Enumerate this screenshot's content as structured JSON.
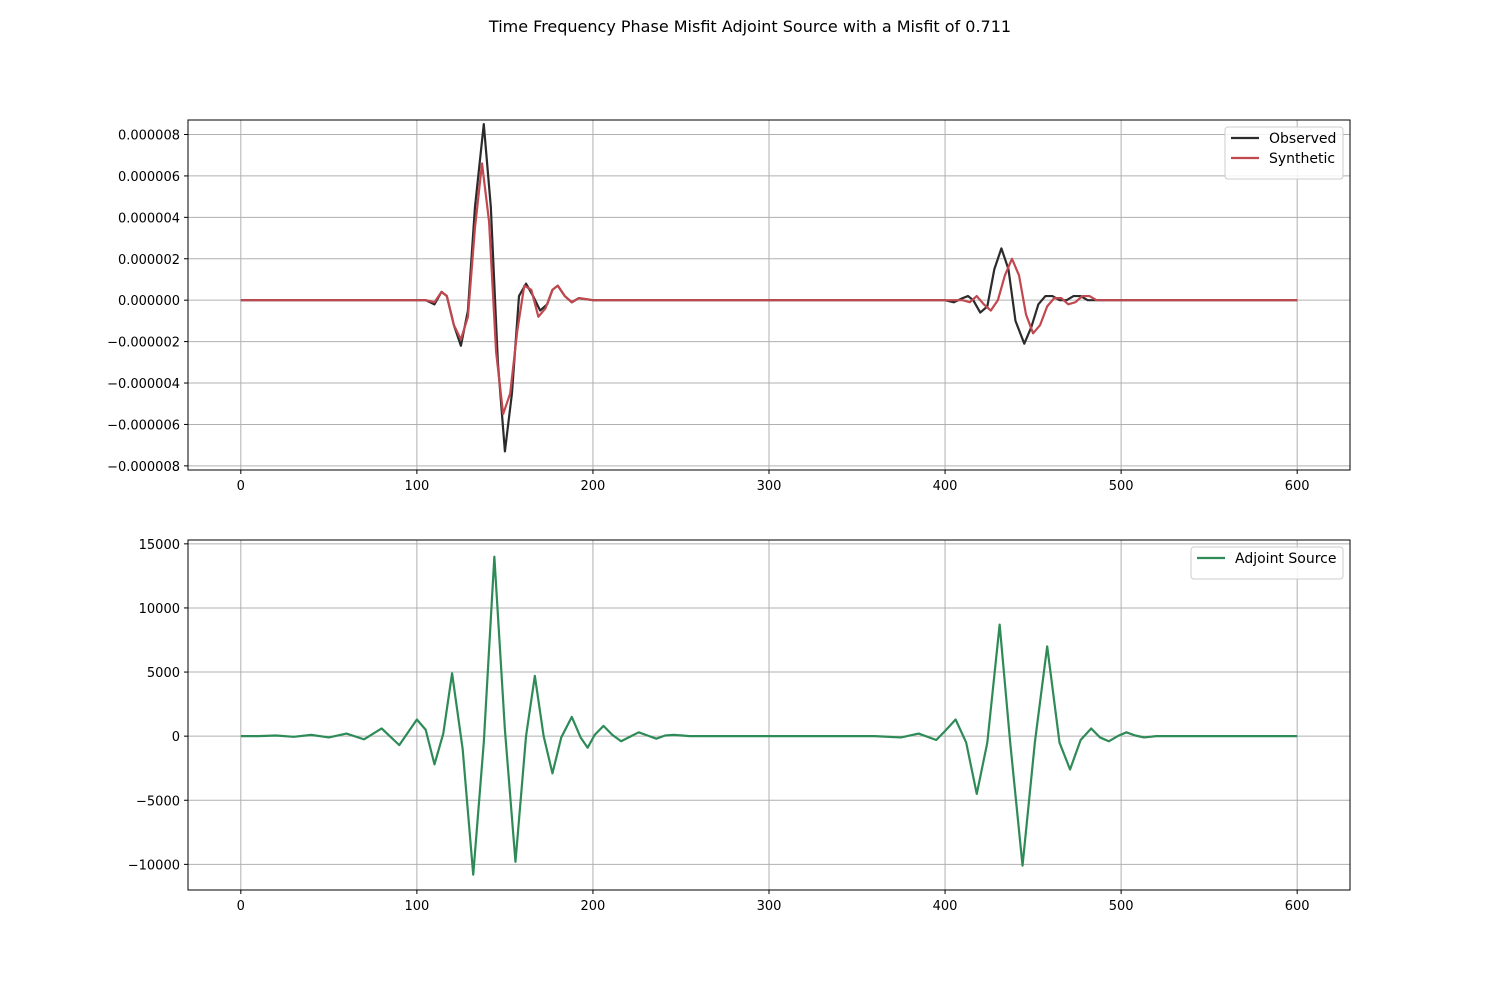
{
  "figure": {
    "title": "Time Frequency Phase Misfit Adjoint Source with a Misfit of 0.711"
  },
  "chart_data": [
    {
      "type": "line",
      "title": "",
      "xlabel": "",
      "ylabel": "",
      "xlim": [
        -30,
        630
      ],
      "ylim": [
        -8.2e-06,
        8.7e-06
      ],
      "grid": true,
      "legend_position": "top-right",
      "x_ticks": [
        0,
        100,
        200,
        300,
        400,
        500,
        600
      ],
      "x_tick_labels": [
        "0",
        "100",
        "200",
        "300",
        "400",
        "500",
        "600"
      ],
      "y_ticks": [
        8e-06,
        6e-06,
        4e-06,
        2e-06,
        0,
        -2e-06,
        -4e-06,
        -6e-06,
        -8e-06
      ],
      "y_tick_labels": [
        "0.000008",
        "0.000006",
        "0.000004",
        "0.000002",
        "0.000000",
        "−0.000002",
        "−0.000004",
        "−0.000006",
        "−0.000008"
      ],
      "series": [
        {
          "name": "Observed",
          "color": "#2b2b2b",
          "points": [
            [
              0,
              0
            ],
            [
              100,
              0
            ],
            [
              105,
              0
            ],
            [
              110,
              -2e-07
            ],
            [
              114,
              4e-07
            ],
            [
              117,
              2e-07
            ],
            [
              121,
              -1.2e-06
            ],
            [
              125,
              -2.2e-06
            ],
            [
              129,
              -5e-07
            ],
            [
              133,
              4.5e-06
            ],
            [
              138,
              8.5e-06
            ],
            [
              142,
              4.5e-06
            ],
            [
              146,
              -3e-06
            ],
            [
              150,
              -7.3e-06
            ],
            [
              154,
              -4.5e-06
            ],
            [
              158,
              2e-07
            ],
            [
              162,
              8e-07
            ],
            [
              166,
              2e-07
            ],
            [
              170,
              -5e-07
            ],
            [
              174,
              -2e-07
            ],
            [
              177,
              5e-07
            ],
            [
              180,
              7e-07
            ],
            [
              184,
              2e-07
            ],
            [
              188,
              -1e-07
            ],
            [
              192,
              1e-07
            ],
            [
              200,
              0
            ],
            [
              300,
              0
            ],
            [
              400,
              0
            ],
            [
              405,
              -1e-07
            ],
            [
              410,
              1e-07
            ],
            [
              413,
              2e-07
            ],
            [
              416,
              0
            ],
            [
              420,
              -6e-07
            ],
            [
              424,
              -3e-07
            ],
            [
              428,
              1.5e-06
            ],
            [
              432,
              2.5e-06
            ],
            [
              436,
              1.5e-06
            ],
            [
              440,
              -1e-06
            ],
            [
              445,
              -2.1e-06
            ],
            [
              449,
              -1.3e-06
            ],
            [
              453,
              -2e-07
            ],
            [
              457,
              2e-07
            ],
            [
              461,
              2e-07
            ],
            [
              465,
              0
            ],
            [
              469,
              0
            ],
            [
              473,
              2e-07
            ],
            [
              477,
              2e-07
            ],
            [
              481,
              0
            ],
            [
              485,
              0
            ],
            [
              490,
              0
            ],
            [
              500,
              0
            ],
            [
              600,
              0
            ]
          ]
        },
        {
          "name": "Synthetic",
          "color": "#c0484e",
          "points": [
            [
              0,
              0
            ],
            [
              100,
              0
            ],
            [
              105,
              0
            ],
            [
              110,
              -1e-07
            ],
            [
              114,
              4e-07
            ],
            [
              117,
              2e-07
            ],
            [
              121,
              -1.2e-06
            ],
            [
              125,
              -1.9e-06
            ],
            [
              129,
              -8e-07
            ],
            [
              133,
              3.5e-06
            ],
            [
              137,
              6.6e-06
            ],
            [
              141,
              3.8e-06
            ],
            [
              145,
              -2.5e-06
            ],
            [
              149,
              -5.5e-06
            ],
            [
              153,
              -4.5e-06
            ],
            [
              157,
              -1.5e-06
            ],
            [
              161,
              7e-07
            ],
            [
              165,
              5e-07
            ],
            [
              169,
              -8e-07
            ],
            [
              173,
              -4e-07
            ],
            [
              177,
              5e-07
            ],
            [
              180,
              7e-07
            ],
            [
              184,
              2e-07
            ],
            [
              188,
              -1e-07
            ],
            [
              192,
              1e-07
            ],
            [
              200,
              0
            ],
            [
              300,
              0
            ],
            [
              400,
              0
            ],
            [
              410,
              0
            ],
            [
              414,
              -1e-07
            ],
            [
              418,
              2e-07
            ],
            [
              422,
              -2e-07
            ],
            [
              426,
              -5e-07
            ],
            [
              430,
              0
            ],
            [
              434,
              1.2e-06
            ],
            [
              438,
              2e-06
            ],
            [
              442,
              1.2e-06
            ],
            [
              446,
              -7e-07
            ],
            [
              450,
              -1.6e-06
            ],
            [
              454,
              -1.2e-06
            ],
            [
              458,
              -3e-07
            ],
            [
              462,
              1e-07
            ],
            [
              466,
              1e-07
            ],
            [
              470,
              -2e-07
            ],
            [
              474,
              -1e-07
            ],
            [
              478,
              2e-07
            ],
            [
              482,
              2e-07
            ],
            [
              486,
              0
            ],
            [
              490,
              0
            ],
            [
              500,
              0
            ],
            [
              600,
              0
            ]
          ]
        }
      ]
    },
    {
      "type": "line",
      "title": "",
      "xlabel": "",
      "ylabel": "",
      "xlim": [
        -30,
        630
      ],
      "ylim": [
        -12000,
        15300
      ],
      "grid": true,
      "legend_position": "top-right",
      "x_ticks": [
        0,
        100,
        200,
        300,
        400,
        500,
        600
      ],
      "x_tick_labels": [
        "0",
        "100",
        "200",
        "300",
        "400",
        "500",
        "600"
      ],
      "y_ticks": [
        15000,
        10000,
        5000,
        0,
        -5000,
        -10000
      ],
      "y_tick_labels": [
        "15000",
        "10000",
        "5000",
        "0",
        "−5000",
        "−10000"
      ],
      "series": [
        {
          "name": "Adjoint Source",
          "color": "#2e8b57",
          "points": [
            [
              0,
              0
            ],
            [
              10,
              0
            ],
            [
              20,
              50
            ],
            [
              30,
              -50
            ],
            [
              40,
              100
            ],
            [
              50,
              -100
            ],
            [
              60,
              200
            ],
            [
              70,
              -250
            ],
            [
              80,
              600
            ],
            [
              90,
              -700
            ],
            [
              100,
              1300
            ],
            [
              105,
              500
            ],
            [
              110,
              -2200
            ],
            [
              115,
              200
            ],
            [
              120,
              4900
            ],
            [
              126,
              -1000
            ],
            [
              132,
              -10800
            ],
            [
              138,
              -500
            ],
            [
              144,
              14000
            ],
            [
              150,
              500
            ],
            [
              156,
              -9800
            ],
            [
              162,
              0
            ],
            [
              167,
              4700
            ],
            [
              172,
              0
            ],
            [
              177,
              -2900
            ],
            [
              182,
              -100
            ],
            [
              188,
              1500
            ],
            [
              193,
              -100
            ],
            [
              197,
              -900
            ],
            [
              201,
              100
            ],
            [
              206,
              800
            ],
            [
              211,
              100
            ],
            [
              216,
              -400
            ],
            [
              221,
              -50
            ],
            [
              226,
              300
            ],
            [
              231,
              50
            ],
            [
              236,
              -200
            ],
            [
              241,
              50
            ],
            [
              246,
              100
            ],
            [
              255,
              0
            ],
            [
              300,
              0
            ],
            [
              360,
              0
            ],
            [
              375,
              -100
            ],
            [
              385,
              200
            ],
            [
              395,
              -300
            ],
            [
              400,
              400
            ],
            [
              406,
              1300
            ],
            [
              412,
              -500
            ],
            [
              418,
              -4500
            ],
            [
              424,
              -500
            ],
            [
              431,
              8700
            ],
            [
              437,
              -500
            ],
            [
              444,
              -10100
            ],
            [
              451,
              -500
            ],
            [
              458,
              7000
            ],
            [
              465,
              -500
            ],
            [
              471,
              -2600
            ],
            [
              477,
              -300
            ],
            [
              483,
              600
            ],
            [
              488,
              -100
            ],
            [
              493,
              -400
            ],
            [
              498,
              0
            ],
            [
              503,
              300
            ],
            [
              508,
              50
            ],
            [
              513,
              -100
            ],
            [
              520,
              0
            ],
            [
              600,
              0
            ]
          ]
        }
      ]
    }
  ]
}
